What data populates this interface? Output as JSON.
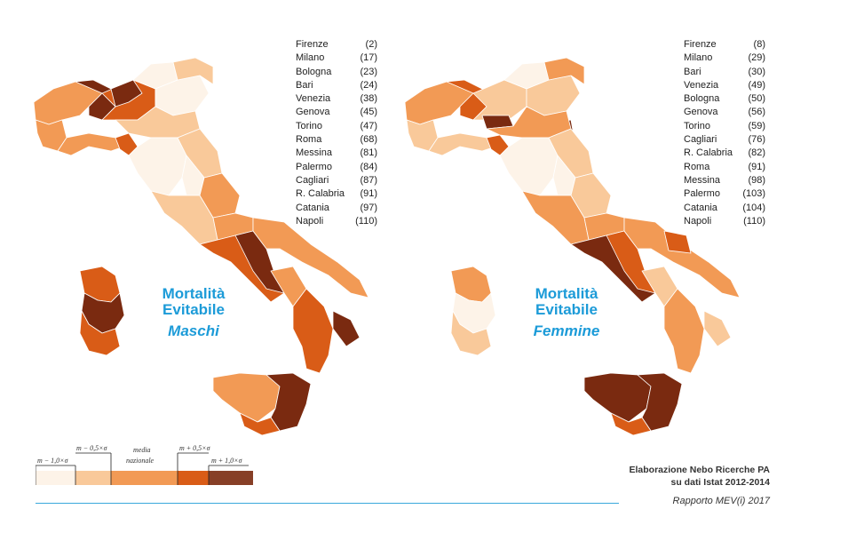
{
  "maps": [
    {
      "title_line1": "Mortalità",
      "title_line2": "Evitabile",
      "subtitle": "Maschi",
      "ranking": [
        {
          "city": "Firenze",
          "rank": "(2)"
        },
        {
          "city": "Milano",
          "rank": "(17)"
        },
        {
          "city": "Bologna",
          "rank": "(23)"
        },
        {
          "city": "Bari",
          "rank": "(24)"
        },
        {
          "city": "Venezia",
          "rank": "(38)"
        },
        {
          "city": "Genova",
          "rank": "(45)"
        },
        {
          "city": "Torino",
          "rank": "(47)"
        },
        {
          "city": "Roma",
          "rank": "(68)"
        },
        {
          "city": "Messina",
          "rank": "(81)"
        },
        {
          "city": "Palermo",
          "rank": "(84)"
        },
        {
          "city": "Cagliari",
          "rank": "(87)"
        },
        {
          "city": "R. Calabria",
          "rank": "(91)"
        },
        {
          "city": "Catania",
          "rank": "(97)"
        },
        {
          "city": "Napoli",
          "rank": "(110)"
        }
      ]
    },
    {
      "title_line1": "Mortalità",
      "title_line2": "Evitabile",
      "subtitle": "Femmine",
      "ranking": [
        {
          "city": "Firenze",
          "rank": "(8)"
        },
        {
          "city": "Milano",
          "rank": "(29)"
        },
        {
          "city": "Bari",
          "rank": "(30)"
        },
        {
          "city": "Venezia",
          "rank": "(49)"
        },
        {
          "city": "Bologna",
          "rank": "(50)"
        },
        {
          "city": "Genova",
          "rank": "(56)"
        },
        {
          "city": "Torino",
          "rank": "(59)"
        },
        {
          "city": "Cagliari",
          "rank": "(76)"
        },
        {
          "city": "R. Calabria",
          "rank": "(82)"
        },
        {
          "city": "Roma",
          "rank": "(91)"
        },
        {
          "city": "Messina",
          "rank": "(98)"
        },
        {
          "city": "Palermo",
          "rank": "(103)"
        },
        {
          "city": "Catania",
          "rank": "(104)"
        },
        {
          "city": "Napoli",
          "rank": "(110)"
        }
      ]
    }
  ],
  "legend": {
    "labels": {
      "m_minus_1": "m − 1,0×σ",
      "m_minus_05": "m − 0,5×σ",
      "media": "media",
      "nazionale": "nazionale",
      "m_plus_05": "m + 0,5×σ",
      "m_plus_1": "m + 1,0×σ"
    },
    "colors": [
      "#fdf3e8",
      "#f9c99a",
      "#f29a55",
      "#d95c17",
      "#7a2a10"
    ]
  },
  "credit": {
    "line1": "Elaborazione Nebo Ricerche PA",
    "line2": "su dati Istat 2012-2014"
  },
  "report": "Rapporto MEV(i) 2017",
  "colors": {
    "title_blue": "#1c9bd8",
    "rule_blue": "#3aa8dc"
  }
}
